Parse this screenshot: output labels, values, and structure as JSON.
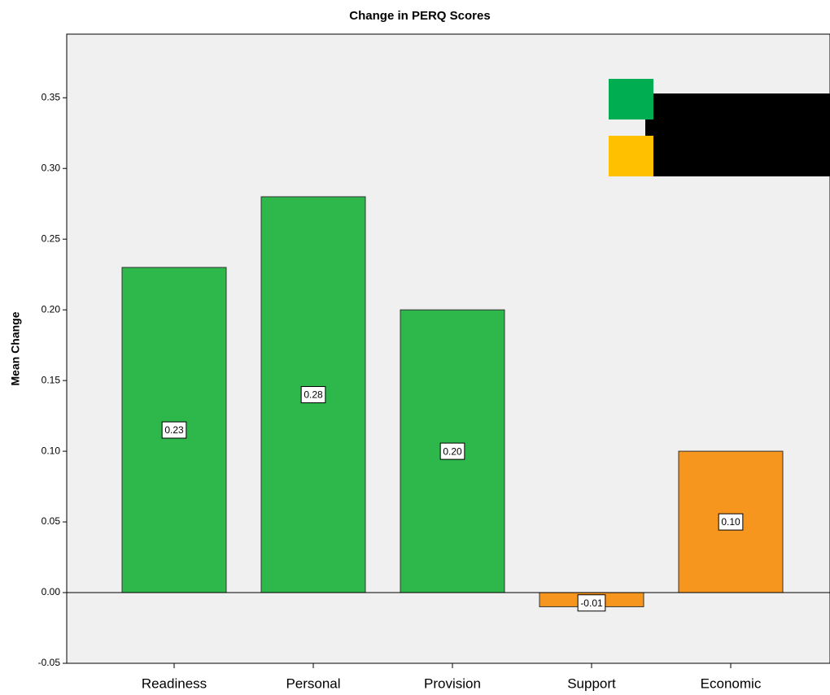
{
  "chart_data": {
    "type": "bar",
    "title": "Change in PERQ Scores",
    "y_label": "Mean Change",
    "categories": [
      "Readiness",
      "Personal",
      "Provision",
      "Support",
      "Economic"
    ],
    "values": [
      0.23,
      0.28,
      0.2,
      -0.01,
      0.1
    ],
    "value_labels": [
      "0.23",
      "0.28",
      "0.20",
      "-0.01",
      "0.10"
    ],
    "colors": [
      "#2eb84b",
      "#2eb84b",
      "#2eb84b",
      "#f7961e",
      "#f7961e"
    ],
    "ylim": [
      -0.05,
      0.395
    ],
    "yticks": [
      -0.05,
      {
        "value": 0,
        "label": "0.00"
      },
      0.05,
      {
        "value": 0.1,
        "label": "0.10"
      },
      0.15,
      {
        "value": 0.2,
        "label": "0.20"
      },
      0.25,
      {
        "value": 0.3,
        "label": "0.30"
      },
      0.35
    ],
    "grid": false
  }
}
